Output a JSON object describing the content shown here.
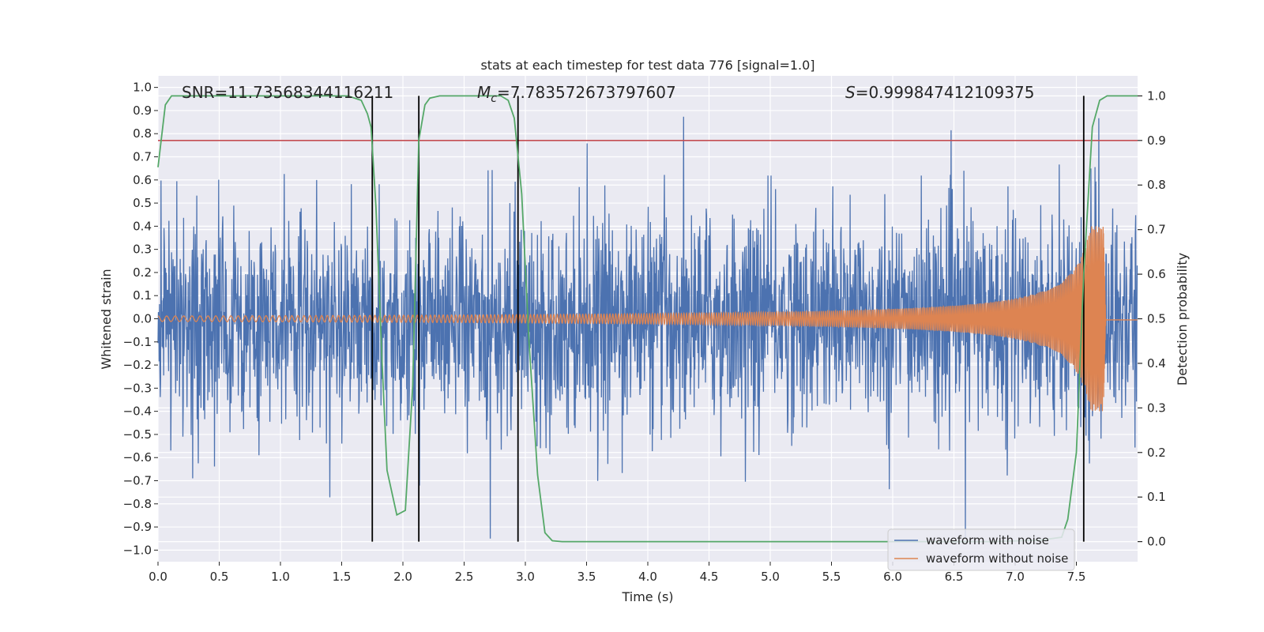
{
  "chart_data": {
    "type": "line",
    "title": "stats at each timestep for test data 776 [signal=1.0]",
    "xlabel": "Time (s)",
    "ylabel": "Whitened strain",
    "y2label": "Detection probability",
    "xlim": [
      0.0,
      8.0
    ],
    "ylim": [
      -1.05,
      1.05
    ],
    "y2lim": [
      -0.045,
      1.045
    ],
    "xticks": [
      0.0,
      0.5,
      1.0,
      1.5,
      2.0,
      2.5,
      3.0,
      3.5,
      4.0,
      4.5,
      5.0,
      5.5,
      6.0,
      6.5,
      7.0,
      7.5
    ],
    "xtick_labels": [
      "0.0",
      "0.5",
      "1.0",
      "1.5",
      "2.0",
      "2.5",
      "3.0",
      "3.5",
      "4.0",
      "4.5",
      "5.0",
      "5.5",
      "6.0",
      "6.5",
      "7.0",
      "7.5"
    ],
    "yticks": [
      1.0,
      0.9,
      0.8,
      0.7,
      0.6,
      0.5,
      0.4,
      0.3,
      0.2,
      0.1,
      0.0,
      -0.1,
      -0.2,
      -0.3,
      -0.4,
      -0.5,
      -0.6,
      -0.7,
      -0.8,
      -0.9,
      -1.0
    ],
    "ytick_labels": [
      "1.0",
      "0.9",
      "0.8",
      "0.7",
      "0.6",
      "0.5",
      "0.4",
      "0.3",
      "0.2",
      "0.1",
      "0.0",
      "−0.1",
      "−0.2",
      "−0.3",
      "−0.4",
      "−0.5",
      "−0.6",
      "−0.7",
      "−0.8",
      "−0.9",
      "−1.0"
    ],
    "y2ticks": [
      1.0,
      0.9,
      0.8,
      0.7,
      0.6,
      0.5,
      0.4,
      0.3,
      0.2,
      0.1,
      0.0
    ],
    "y2tick_labels": [
      "1.0",
      "0.9",
      "0.8",
      "0.7",
      "0.6",
      "0.5",
      "0.4",
      "0.3",
      "0.2",
      "0.1",
      "0.0"
    ],
    "annotations": {
      "snr": "SNR=11.73568344116211",
      "mc_symbol": "M",
      "mc_sub": "c",
      "mc_value": "=7.783572673797607",
      "s_symbol": "S",
      "s_value": "=0.999847412109375"
    },
    "threshold": 0.9,
    "vlines": [
      1.75,
      2.13,
      2.94,
      7.56
    ],
    "legend": {
      "position": "lower-right",
      "entries": [
        "waveform with noise",
        "waveform without noise"
      ]
    },
    "series": [
      {
        "name": "waveform with noise",
        "color": "#4c72b0",
        "noise_seed": 776,
        "duration": 8.0,
        "chirp_end": 7.72
      },
      {
        "name": "waveform without noise",
        "color": "#dd8452",
        "f0": 14,
        "f1": 230,
        "amp_start": 0.012,
        "amp_peak": 0.4,
        "chirp_end": 7.72,
        "ringdown_end": 7.74
      },
      {
        "name": "detection probability",
        "color": "#55a868",
        "x": [
          0.0,
          0.06,
          0.11,
          0.2,
          0.4,
          0.8,
          1.2,
          1.55,
          1.66,
          1.71,
          1.74,
          1.78,
          1.83,
          1.87,
          1.95,
          2.02,
          2.08,
          2.13,
          2.18,
          2.22,
          2.3,
          2.6,
          2.8,
          2.86,
          2.91,
          2.97,
          3.03,
          3.1,
          3.16,
          3.22,
          3.3,
          4.0,
          5.0,
          6.0,
          6.8,
          7.2,
          7.38,
          7.43,
          7.5,
          7.56,
          7.63,
          7.69,
          7.75,
          7.8,
          8.0
        ],
        "y": [
          0.84,
          0.98,
          1.0,
          1.0,
          1.0,
          1.0,
          1.0,
          1.0,
          0.99,
          0.96,
          0.93,
          0.75,
          0.4,
          0.16,
          0.06,
          0.07,
          0.35,
          0.9,
          0.98,
          0.995,
          1.0,
          1.0,
          1.0,
          0.99,
          0.95,
          0.78,
          0.45,
          0.15,
          0.02,
          0.002,
          0.0,
          0.0,
          0.0,
          0.0,
          0.0,
          0.003,
          0.01,
          0.05,
          0.2,
          0.6,
          0.93,
          0.99,
          1.0,
          1.0,
          1.0
        ]
      }
    ]
  }
}
